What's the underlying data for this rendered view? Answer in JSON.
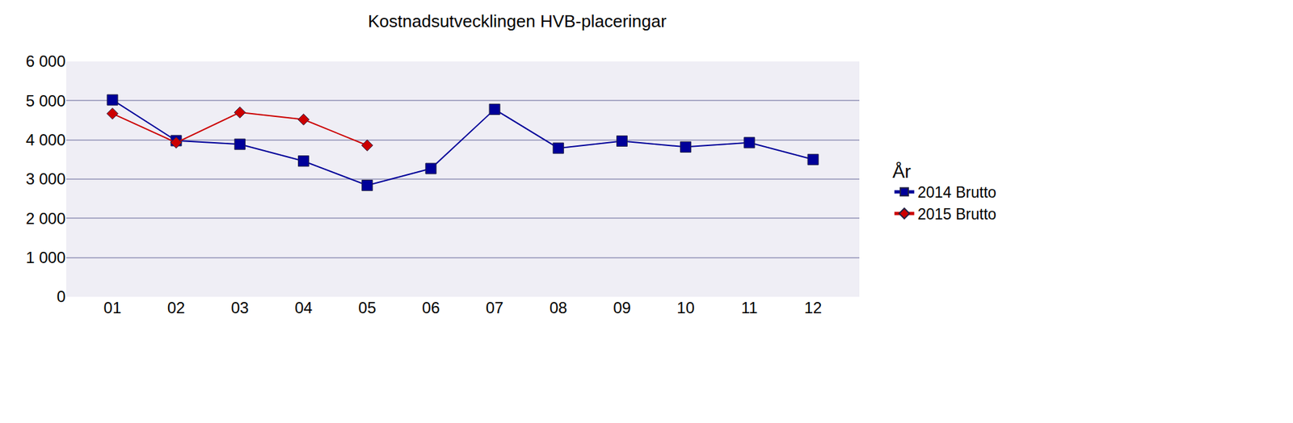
{
  "chart_data": {
    "type": "line",
    "title": "Kostnadsutvecklingen HVB-placeringar",
    "legend_title": "År",
    "categories": [
      "01",
      "02",
      "03",
      "04",
      "05",
      "06",
      "07",
      "08",
      "09",
      "10",
      "11",
      "12"
    ],
    "series": [
      {
        "name": "2014 Brutto",
        "color": "#000099",
        "marker": "square",
        "values": [
          5020,
          3980,
          3890,
          3460,
          2840,
          3270,
          4780,
          3790,
          3970,
          3820,
          3930,
          3500
        ]
      },
      {
        "name": "2015 Brutto",
        "color": "#cc0000",
        "marker": "diamond",
        "values": [
          4670,
          3930,
          4700,
          4520,
          3860,
          null,
          null,
          null,
          null,
          null,
          null,
          null
        ]
      }
    ],
    "ylim": [
      0,
      6000
    ],
    "yticks": [
      0,
      {
        "value": 1000,
        "label": "1 000"
      },
      {
        "value": 2000,
        "label": "2 000"
      },
      {
        "value": 3000,
        "label": "3 000"
      },
      {
        "value": 4000,
        "label": "4 000"
      },
      {
        "value": 5000,
        "label": "5 000"
      },
      {
        "value": 6000,
        "label": "6 000"
      }
    ],
    "grid": true,
    "legend": "right"
  }
}
